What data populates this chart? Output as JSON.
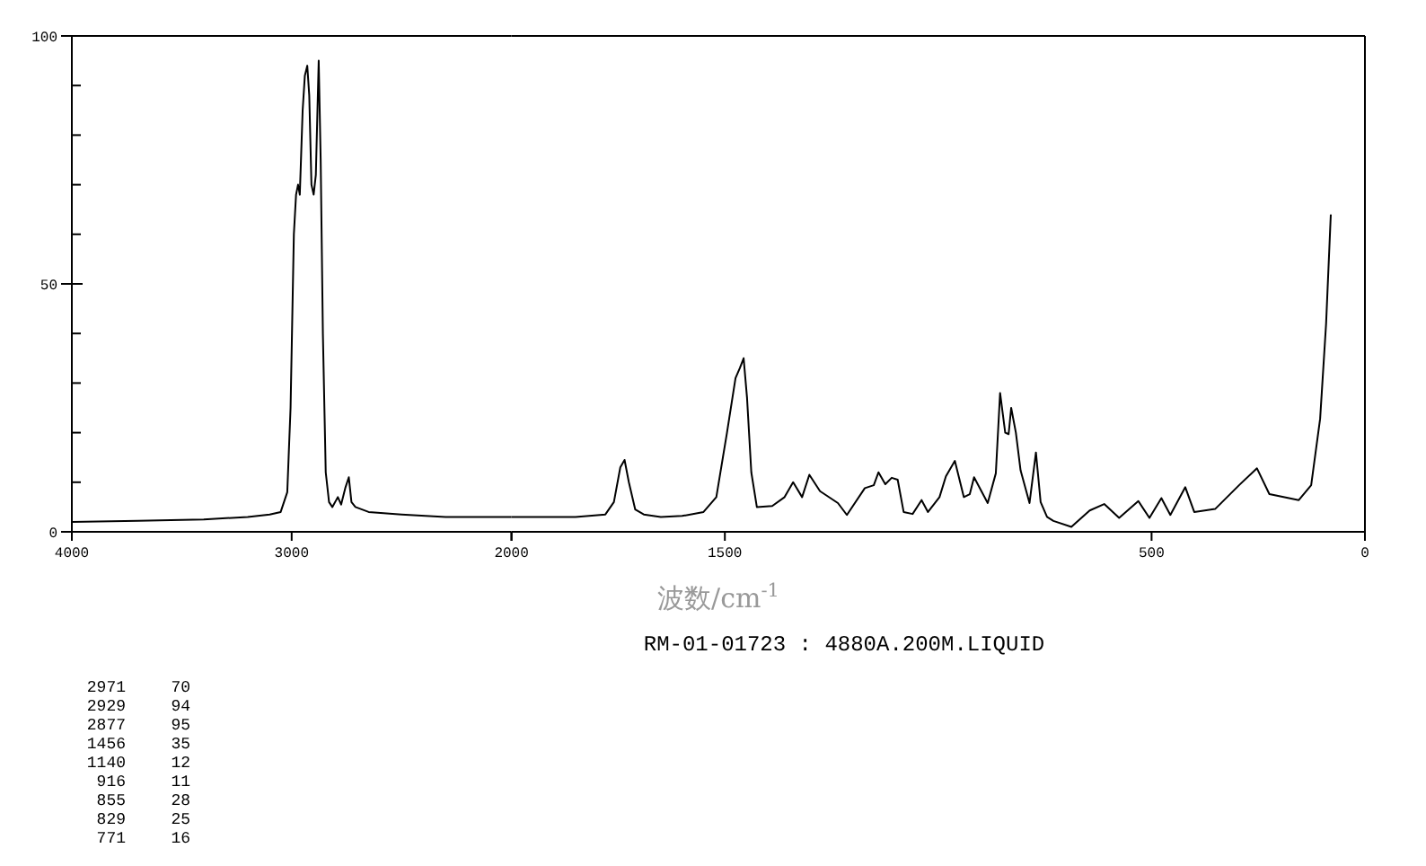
{
  "chart_data": [
    {
      "type": "line",
      "x": [
        4000,
        3700,
        3400,
        3200,
        3100,
        3050,
        3020,
        3005,
        2990,
        2980,
        2971,
        2963,
        2950,
        2940,
        2929,
        2920,
        2910,
        2900,
        2890,
        2877,
        2868,
        2858,
        2845,
        2830,
        2815,
        2790,
        2775,
        2755,
        2740,
        2728,
        2710,
        2650,
        2500,
        2300,
        2100,
        2000
      ],
      "series": [
        {
          "color": "#000000",
          "values": [
            2,
            2.2,
            2.5,
            3,
            3.5,
            4,
            8,
            25,
            60,
            68,
            70,
            68,
            85,
            92,
            94,
            88,
            70,
            68,
            72,
            95,
            75,
            40,
            12,
            6,
            5,
            7,
            5.5,
            9,
            11,
            6,
            5,
            4,
            3.5,
            3,
            3,
            3
          ]
        }
      ],
      "xlim": [
        4000,
        2000
      ],
      "xticks": [
        4000,
        3000,
        2000
      ],
      "ylim": [
        0,
        100
      ],
      "yticks": [
        0,
        {
          "value": 10,
          "label": null
        },
        {
          "value": 20,
          "label": null
        },
        {
          "value": 30,
          "label": null
        },
        {
          "value": 40,
          "label": null
        },
        50,
        {
          "value": 60,
          "label": null
        },
        {
          "value": 70,
          "label": null
        },
        {
          "value": 80,
          "label": null
        },
        {
          "value": 90,
          "label": null
        },
        100
      ],
      "marker": "none",
      "line_style": "solid"
    },
    {
      "type": "line",
      "xlabel": "波数/cm$^{-1}$",
      "annotations": [
        "RM-01-01723 : 4880A.200M.LIQUID",
        "2971 70",
        "2929 94",
        "2877 95",
        "1456 35",
        "1140 12",
        "916 11",
        "855 28",
        "829 25",
        "771 16"
      ],
      "x": [
        2000,
        1850,
        1780,
        1760,
        1745,
        1735,
        1725,
        1710,
        1690,
        1650,
        1600,
        1550,
        1520,
        1495,
        1475,
        1465,
        1456,
        1448,
        1438,
        1425,
        1389,
        1360,
        1340,
        1319,
        1302,
        1277,
        1235,
        1214,
        1172,
        1151,
        1140,
        1124,
        1109,
        1095,
        1081,
        1060,
        1039,
        1024,
        997,
        982,
        961,
        940,
        926,
        916,
        884,
        865,
        855,
        843,
        835,
        829,
        818,
        807,
        786,
        771,
        760,
        745,
        730,
        688,
        645,
        611,
        576,
        531,
        505,
        477,
        456,
        421,
        400,
        351,
        295,
        253,
        224,
        155,
        126,
        105,
        91,
        80
      ],
      "series": [
        {
          "color": "#000000",
          "values": [
            3,
            3,
            3.5,
            6,
            13,
            14.5,
            10,
            4.5,
            3.5,
            3,
            3.2,
            4,
            7,
            20,
            31,
            33,
            35,
            27,
            12,
            5,
            5.2,
            7,
            10,
            7,
            11.5,
            8.2,
            5.8,
            3.4,
            8.8,
            9.4,
            12,
            9.6,
            10.9,
            10.5,
            4,
            3.6,
            6.4,
            4,
            7,
            11.2,
            14.3,
            7,
            7.6,
            11,
            5.8,
            11.8,
            28,
            20,
            19.7,
            25,
            20,
            12.4,
            5.8,
            16,
            6,
            3,
            2.2,
            1,
            4.3,
            5.6,
            2.8,
            6.2,
            2.8,
            6.8,
            3.4,
            9,
            4,
            4.6,
            9.4,
            12.8,
            7.6,
            6.4,
            9.4,
            22.8,
            42,
            64
          ]
        }
      ],
      "xlim": [
        2000,
        0
      ],
      "xticks": [
        {
          "value": 2000,
          "label": null
        },
        1500,
        500,
        0
      ],
      "ylim": [
        0,
        100
      ],
      "tick_labels": "x",
      "marker": "none",
      "line_style": "solid"
    }
  ]
}
